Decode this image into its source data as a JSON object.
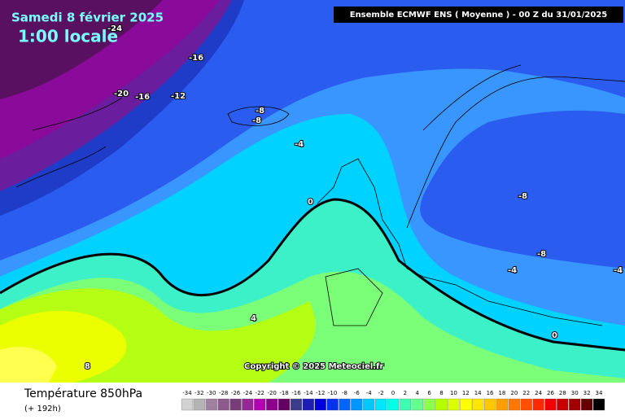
{
  "header": {
    "date": "Samedi 8 février 2025",
    "time": "1:00 locale",
    "model": "Ensemble ECMWF ENS  ( Moyenne )  -  00 Z du 31/01/2025"
  },
  "contour_labels": [
    "-24",
    "-16",
    "-20",
    "-16",
    "-12",
    "-8",
    "-8",
    "-4",
    "0",
    "4",
    "8",
    "-8",
    "-8",
    "-4",
    "-4",
    "0"
  ],
  "copyright": "Copyright © 2025 Meteociel.fr",
  "footer": {
    "title": "Température 850hPa",
    "lead": "(+ 192h)"
  },
  "legend": {
    "values": [
      -34,
      -32,
      -30,
      -28,
      -26,
      -24,
      -22,
      -20,
      -18,
      -16,
      -14,
      -12,
      -10,
      -8,
      -6,
      -4,
      -2,
      0,
      2,
      4,
      6,
      8,
      10,
      12,
      14,
      16,
      18,
      20,
      22,
      24,
      26,
      28,
      30,
      32,
      34
    ],
    "colors": [
      "#d2d2d2",
      "#b4b4b4",
      "#a080a0",
      "#8c5a8c",
      "#783c78",
      "#962896",
      "#b400b4",
      "#8c008c",
      "#640064",
      "#3c3c8c",
      "#1e1eb4",
      "#0000dc",
      "#0032f0",
      "#0064ff",
      "#0096ff",
      "#00c8ff",
      "#00e6ff",
      "#00ffe6",
      "#3cffb4",
      "#64ff8c",
      "#8cff50",
      "#b4ff00",
      "#dcff00",
      "#ffff00",
      "#ffe600",
      "#ffc800",
      "#ffa000",
      "#ff7800",
      "#ff5000",
      "#ff2800",
      "#f00000",
      "#c80000",
      "#a00000",
      "#640000",
      "#000000"
    ]
  }
}
